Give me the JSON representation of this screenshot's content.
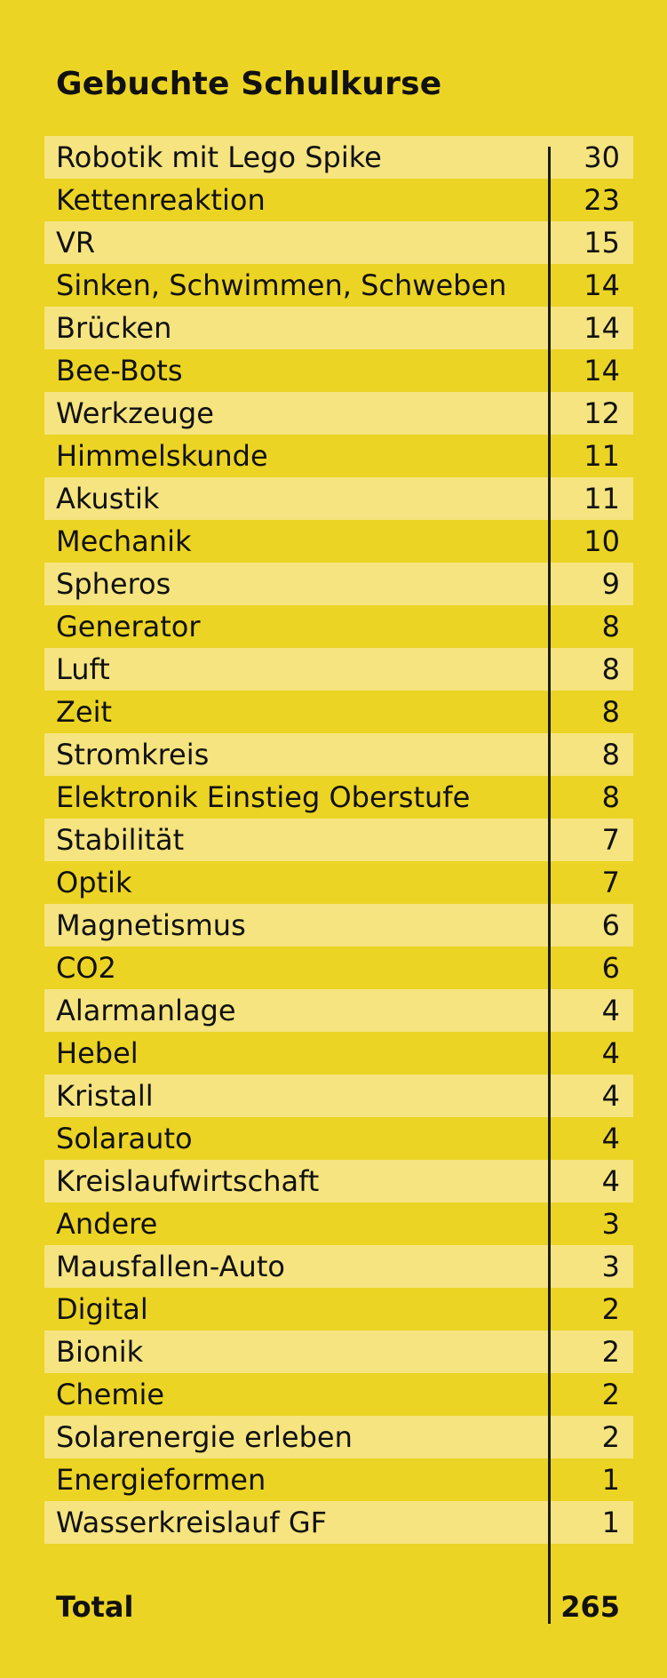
{
  "title": "Gebuchte Schulkurse",
  "courses": [
    {
      "name": "Robotik mit Lego Spike",
      "count": "30"
    },
    {
      "name": "Kettenreaktion",
      "count": "23"
    },
    {
      "name": "VR",
      "count": "15"
    },
    {
      "name": "Sinken, Schwimmen, Schweben",
      "count": "14"
    },
    {
      "name": "Brücken",
      "count": "14"
    },
    {
      "name": "Bee-Bots",
      "count": "14"
    },
    {
      "name": "Werkzeuge",
      "count": "12"
    },
    {
      "name": "Himmelskunde",
      "count": "11"
    },
    {
      "name": "Akustik",
      "count": "11"
    },
    {
      "name": "Mechanik",
      "count": "10"
    },
    {
      "name": "Spheros",
      "count": "9"
    },
    {
      "name": "Generator",
      "count": "8"
    },
    {
      "name": "Luft",
      "count": "8"
    },
    {
      "name": "Zeit",
      "count": "8"
    },
    {
      "name": "Stromkreis",
      "count": "8"
    },
    {
      "name": "Elektronik Einstieg Oberstufe",
      "count": "8"
    },
    {
      "name": "Stabilität",
      "count": "7"
    },
    {
      "name": "Optik",
      "count": "7"
    },
    {
      "name": "Magnetismus",
      "count": "6"
    },
    {
      "name": "CO2",
      "count": "6"
    },
    {
      "name": "Alarmanlage",
      "count": "4"
    },
    {
      "name": "Hebel",
      "count": "4"
    },
    {
      "name": "Kristall",
      "count": "4"
    },
    {
      "name": "Solarauto",
      "count": "4"
    },
    {
      "name": "Kreislaufwirtschaft",
      "count": "4"
    },
    {
      "name": "Andere",
      "count": "3"
    },
    {
      "name": "Mausfallen-Auto",
      "count": "3"
    },
    {
      "name": "Digital",
      "count": "2"
    },
    {
      "name": "Bionik",
      "count": "2"
    },
    {
      "name": "Chemie",
      "count": "2"
    },
    {
      "name": "Solarenergie erleben",
      "count": "2"
    },
    {
      "name": "Energieformen",
      "count": "1"
    },
    {
      "name": "Wasserkreislauf GF",
      "count": "1"
    }
  ],
  "total": {
    "label": "Total",
    "value": "265"
  },
  "colors": {
    "background": "#ecd424",
    "row_light": "#f5e47f",
    "text": "#111111",
    "divider": "#1a1a1a"
  }
}
